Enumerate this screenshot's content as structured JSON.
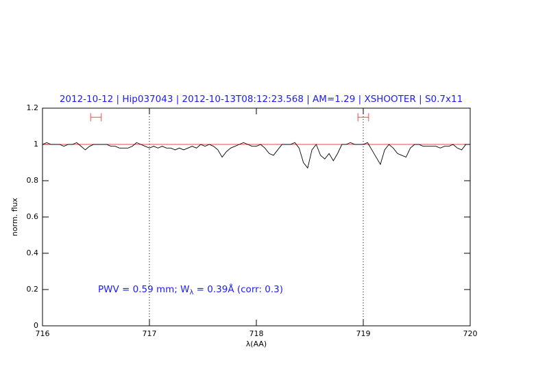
{
  "chart_data": {
    "type": "line",
    "title": "2012-10-12 | Hip037043 | 2012-10-13T08:12:23.568 | AM=1.29 | XSHOOTER | S0.7x11",
    "x_label": "λ(AA)",
    "y_label": "norm. flux",
    "annotation": {
      "before": "PWV = 0.59 mm; W",
      "subscript": "λ",
      "after": " = 0.39Å (corr: 0.3)"
    },
    "xlim": [
      716,
      720
    ],
    "ylim": [
      0,
      1.2
    ],
    "xticks": [
      716,
      717,
      718,
      719,
      720
    ],
    "yticks": [
      0,
      0.2,
      0.4,
      0.6,
      0.8,
      1,
      1.2
    ],
    "vlines": [
      717,
      719
    ],
    "hline": {
      "y": 1,
      "color": "#ff0000"
    },
    "ranges": [
      {
        "x": [
          716.45,
          716.55
        ],
        "y": 1.15,
        "color": "#ff4444"
      },
      {
        "x": [
          718.95,
          719.05
        ],
        "y": 1.15,
        "color": "#ff4444"
      }
    ],
    "series": [
      {
        "color": "#000000",
        "x": [
          716.0,
          716.04,
          716.08,
          716.12,
          716.16,
          716.2,
          716.24,
          716.28,
          716.32,
          716.36,
          716.4,
          716.44,
          716.48,
          716.52,
          716.56,
          716.6,
          716.64,
          716.68,
          716.72,
          716.76,
          716.8,
          716.84,
          716.88,
          716.92,
          716.96,
          717.0,
          717.04,
          717.08,
          717.12,
          717.16,
          717.2,
          717.24,
          717.28,
          717.32,
          717.36,
          717.4,
          717.44,
          717.48,
          717.52,
          717.56,
          717.6,
          717.64,
          717.68,
          717.72,
          717.76,
          717.8,
          717.84,
          717.88,
          717.92,
          717.96,
          718.0,
          718.04,
          718.08,
          718.12,
          718.16,
          718.2,
          718.24,
          718.28,
          718.32,
          718.36,
          718.4,
          718.44,
          718.48,
          718.52,
          718.56,
          718.6,
          718.64,
          718.68,
          718.72,
          718.76,
          718.8,
          718.84,
          718.88,
          718.92,
          718.96,
          719.0,
          719.04,
          719.08,
          719.12,
          719.16,
          719.2,
          719.24,
          719.28,
          719.32,
          719.36,
          719.4,
          719.44,
          719.48,
          719.52,
          719.56,
          719.6,
          719.64,
          719.68,
          719.72,
          719.76,
          719.8,
          719.84,
          719.88,
          719.92,
          719.96,
          720.0
        ],
        "values": [
          1.0,
          1.01,
          1.0,
          1.0,
          1.0,
          0.99,
          1.0,
          1.0,
          1.01,
          0.99,
          0.97,
          0.99,
          1.0,
          1.0,
          1.0,
          1.0,
          0.99,
          0.99,
          0.98,
          0.98,
          0.98,
          0.99,
          1.01,
          1.0,
          0.99,
          0.98,
          0.99,
          0.98,
          0.99,
          0.98,
          0.98,
          0.97,
          0.98,
          0.97,
          0.98,
          0.99,
          0.98,
          1.0,
          0.99,
          1.0,
          0.99,
          0.97,
          0.93,
          0.96,
          0.98,
          0.99,
          1.0,
          1.01,
          1.0,
          0.99,
          0.99,
          1.0,
          0.98,
          0.95,
          0.94,
          0.97,
          1.0,
          1.0,
          1.0,
          1.01,
          0.98,
          0.9,
          0.87,
          0.97,
          1.0,
          0.94,
          0.92,
          0.95,
          0.91,
          0.95,
          1.0,
          1.0,
          1.01,
          1.0,
          1.0,
          1.0,
          1.01,
          0.97,
          0.93,
          0.89,
          0.97,
          1.0,
          0.98,
          0.95,
          0.94,
          0.93,
          0.98,
          1.0,
          1.0,
          0.99,
          0.99,
          0.99,
          0.99,
          0.98,
          0.99,
          0.99,
          1.0,
          0.98,
          0.97,
          1.0,
          1.0
        ]
      }
    ]
  }
}
